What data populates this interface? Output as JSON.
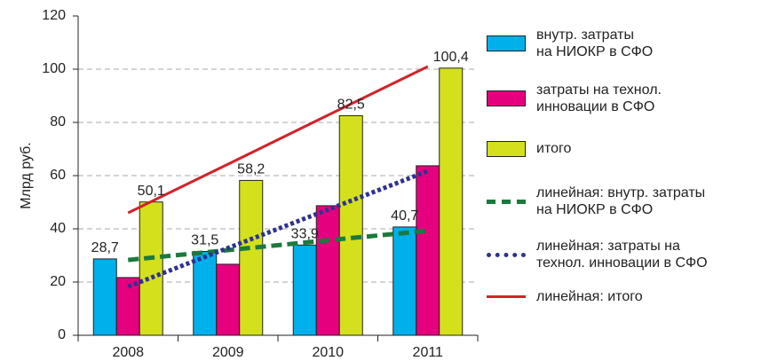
{
  "chart_data": {
    "type": "bar",
    "y_label": "Млрд руб.",
    "categories": [
      "2008",
      "2009",
      "2010",
      "2011"
    ],
    "ylim": [
      0,
      120
    ],
    "yticks": [
      0,
      20,
      40,
      60,
      80,
      100,
      120
    ],
    "grid": true,
    "series": [
      {
        "name": "внутр. затраты\nна НИОКР в СФО",
        "type": "bar",
        "color": "#00b0ea",
        "values": [
          28.7,
          31.5,
          33.9,
          40.7
        ],
        "value_labels": [
          "28,7",
          "31,5",
          "33,9",
          "40,7"
        ]
      },
      {
        "name": "затраты на технол.\nинновации в СФО",
        "type": "bar",
        "color": "#e5007e",
        "values": [
          21.7,
          26.7,
          48.7,
          63.7
        ]
      },
      {
        "name": "итого",
        "type": "bar",
        "color": "#d4e01c",
        "values": [
          50.1,
          58.2,
          82.5,
          100.4
        ],
        "value_labels": [
          "50,1",
          "58,2",
          "82,5",
          "100,4"
        ]
      },
      {
        "name": "линейная: внутр. затраты\nна НИОКР в СФО",
        "type": "line",
        "style": "dashed",
        "color": "#1b7a3c",
        "values": [
          28.3,
          32,
          35.7,
          39.3
        ]
      },
      {
        "name": "линейная: затраты на\nтехнол. инновации в СФО",
        "type": "line",
        "style": "dotted",
        "color": "#2e3192",
        "values": [
          18.3,
          32.8,
          47.2,
          61.7
        ]
      },
      {
        "name": "линейная: итого",
        "type": "line",
        "style": "solid",
        "color": "#d2232a",
        "values": [
          46,
          64.3,
          82.7,
          101
        ]
      }
    ]
  }
}
